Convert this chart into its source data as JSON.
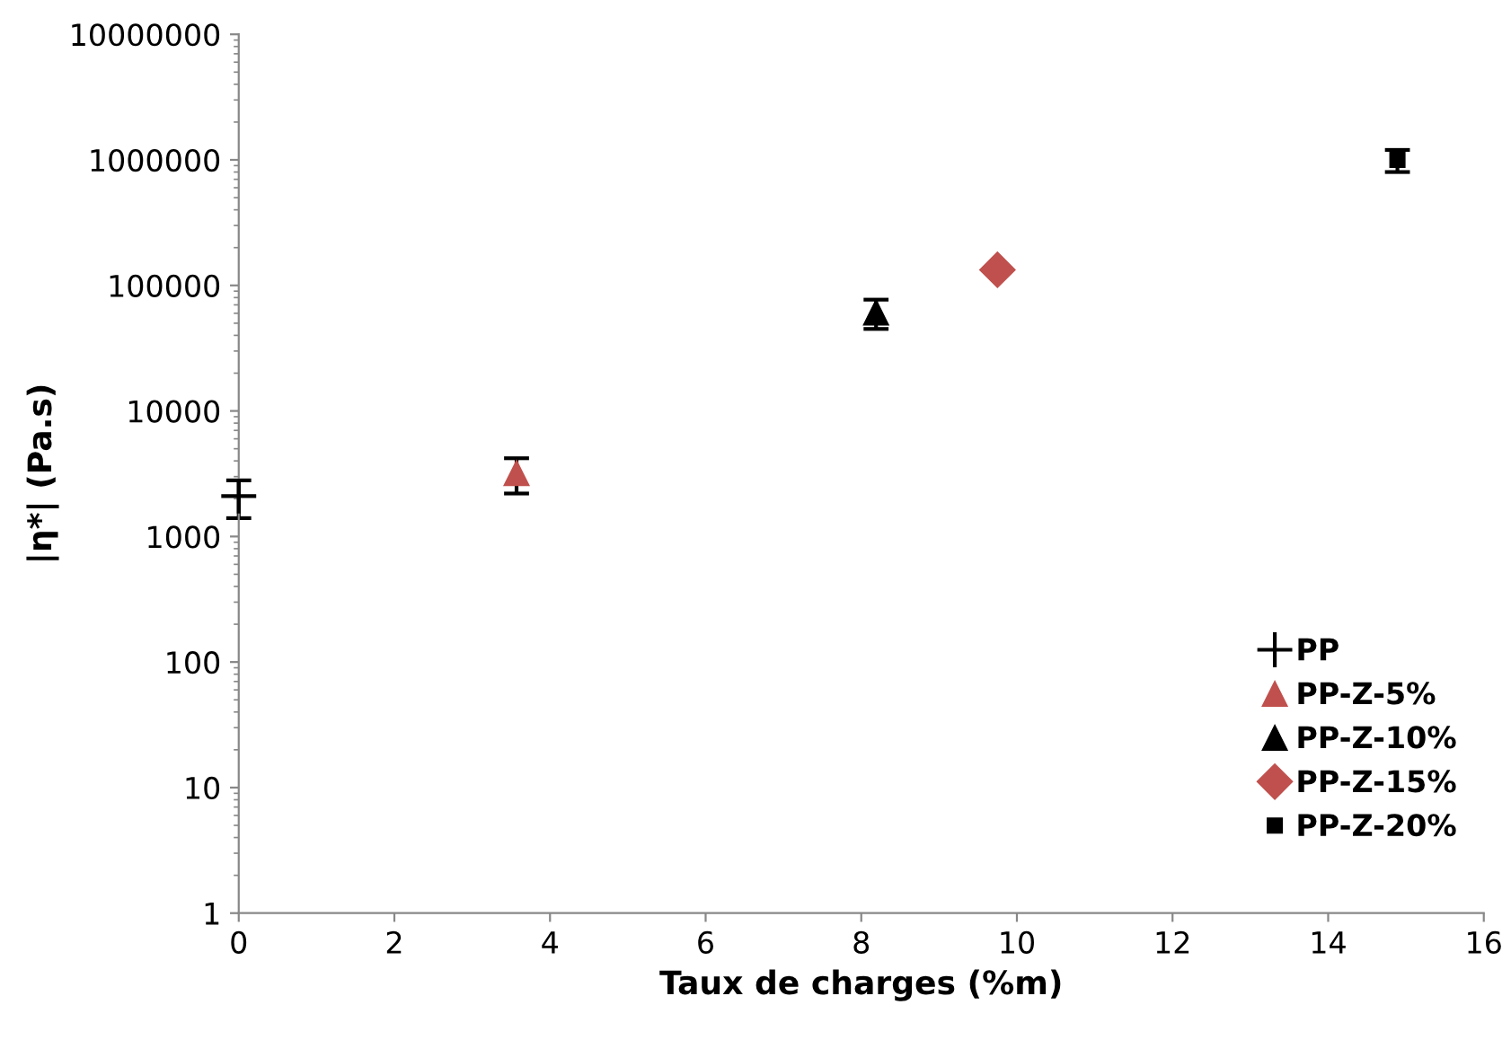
{
  "chart_data": {
    "type": "scatter",
    "xlabel": "Taux de charges (%m)",
    "ylabel": "|η*| (Pa.s)",
    "log": "y",
    "xlim": [
      0,
      16
    ],
    "xticks": [
      0,
      2,
      4,
      6,
      8,
      10,
      12,
      14,
      16
    ],
    "ylim": [
      1,
      10000000
    ],
    "yticks": [
      1,
      10,
      100,
      1000,
      10000,
      100000,
      1000000,
      10000000
    ],
    "grid": false,
    "legend": "bottom right",
    "series": [
      {
        "name": "PP",
        "color": "#000000",
        "marker": "cross",
        "x": [
          0
        ],
        "values": [
          2100
        ],
        "errors": [
          700
        ]
      },
      {
        "name": "PP-Z-5%",
        "color": "#c0504d",
        "marker": "triangle",
        "x": [
          3.57
        ],
        "values": [
          3200
        ],
        "errors": [
          1000
        ]
      },
      {
        "name": "PP-Z-10%",
        "color": "#000000",
        "marker": "triangle",
        "x": [
          8.19
        ],
        "values": [
          61000
        ],
        "errors": [
          16000
        ]
      },
      {
        "name": "PP-Z-15%",
        "color": "#c0504d",
        "marker": "diamond",
        "x": [
          9.75
        ],
        "values": [
          133000
        ]
      },
      {
        "name": "PP-Z-20%",
        "color": "#000000",
        "marker": "square",
        "x": [
          14.89
        ],
        "values": [
          1000000
        ],
        "errors": [
          200000
        ]
      }
    ]
  }
}
